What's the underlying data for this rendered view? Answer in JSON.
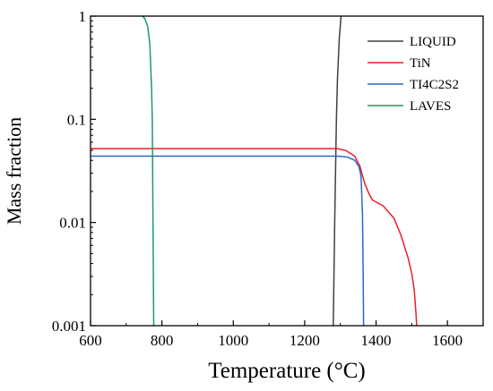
{
  "chart_data": {
    "type": "line",
    "xlabel": "Temperature (°C)",
    "ylabel": "Mass fraction",
    "xlim": [
      600,
      1700
    ],
    "ylim": [
      0.001,
      1
    ],
    "y_scale": "log",
    "x_ticks": [
      600,
      800,
      1000,
      1200,
      1400,
      1600
    ],
    "x_tick_labels": [
      "600",
      "800",
      "1000",
      "1200",
      "1400",
      "1600"
    ],
    "y_ticks": [
      0.001,
      0.01,
      0.1,
      1
    ],
    "y_tick_labels": [
      "0.001",
      "0.01",
      "0.1",
      "1"
    ],
    "grid": false,
    "legend_position": "top-right",
    "series": [
      {
        "name": "LIQUID",
        "color": "#404040",
        "points": [
          [
            1280,
            0.001
          ],
          [
            1284,
            0.01
          ],
          [
            1289,
            0.1
          ],
          [
            1292,
            0.25
          ],
          [
            1297,
            0.6
          ],
          [
            1302,
            1.0
          ]
        ]
      },
      {
        "name": "TiN",
        "color": "#e8202a",
        "points": [
          [
            600,
            0.052
          ],
          [
            1290,
            0.052
          ],
          [
            1315,
            0.05
          ],
          [
            1340,
            0.044
          ],
          [
            1355,
            0.035
          ],
          [
            1368,
            0.024
          ],
          [
            1380,
            0.019
          ],
          [
            1390,
            0.0165
          ],
          [
            1420,
            0.0145
          ],
          [
            1450,
            0.011
          ],
          [
            1470,
            0.0075
          ],
          [
            1490,
            0.0045
          ],
          [
            1500,
            0.0032
          ],
          [
            1507,
            0.0022
          ],
          [
            1512,
            0.0013
          ],
          [
            1514,
            0.001
          ]
        ]
      },
      {
        "name": "TI4C2S2",
        "color": "#2a67c9",
        "points": [
          [
            600,
            0.044
          ],
          [
            1295,
            0.044
          ],
          [
            1320,
            0.043
          ],
          [
            1340,
            0.04
          ],
          [
            1352,
            0.035
          ],
          [
            1358,
            0.028
          ],
          [
            1362,
            0.012
          ],
          [
            1364,
            0.003
          ],
          [
            1365,
            0.001
          ]
        ]
      },
      {
        "name": "LAVES",
        "color": "#1f9c5e",
        "points": [
          [
            745,
            1.0
          ],
          [
            752,
            0.95
          ],
          [
            760,
            0.8
          ],
          [
            766,
            0.55
          ],
          [
            771,
            0.2
          ],
          [
            773,
            0.1
          ],
          [
            775,
            0.01
          ],
          [
            777,
            0.001
          ]
        ]
      }
    ]
  }
}
